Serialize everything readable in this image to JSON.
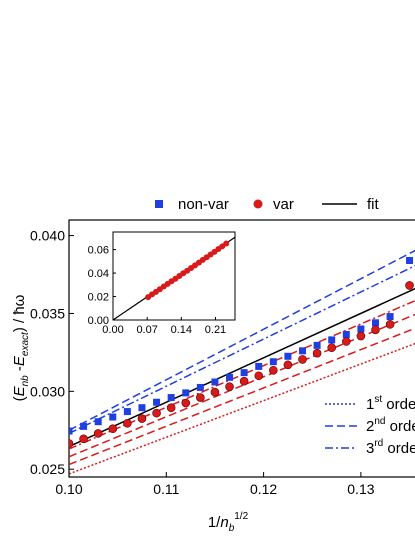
{
  "chart_data": [
    {
      "type": "scatter",
      "xlabel": "1/n_b^{1/2}",
      "ylabel": "(E_nb - E_exact) / ħω",
      "xlim": [
        0.1,
        0.137
      ],
      "ylim": [
        0.0245,
        0.041
      ],
      "x_ticks": [
        "0.10",
        "0.11",
        "0.12",
        "0.13"
      ],
      "y_ticks": [
        "0.025",
        "0.030",
        "0.035",
        "0.040"
      ],
      "legend_top": [
        {
          "label": "non-var",
          "marker": "square",
          "color": "#1f3fe0"
        },
        {
          "label": "var",
          "marker": "circle",
          "color": "#d91a1a"
        },
        {
          "label": "fit",
          "marker": "line",
          "color": "#000000"
        }
      ],
      "legend_right": [
        {
          "label_base": "1",
          "label_sup": "st",
          "label_rest": " orde",
          "dash": "dotted"
        },
        {
          "label_base": "2",
          "label_sup": "nd",
          "label_rest": " orde",
          "dash": "dashed"
        },
        {
          "label_base": "3",
          "label_sup": "rd",
          "label_rest": " orde",
          "dash": "dashdot"
        }
      ],
      "series": [
        {
          "name": "non-var",
          "color": "#1f3fe0",
          "marker": "square",
          "x": [
            0.1,
            0.1015,
            0.103,
            0.1045,
            0.106,
            0.1075,
            0.109,
            0.1105,
            0.112,
            0.1135,
            0.115,
            0.1165,
            0.118,
            0.1195,
            0.121,
            0.1225,
            0.124,
            0.1255,
            0.127,
            0.1285,
            0.13,
            0.1315,
            0.133,
            0.135
          ],
          "y": [
            0.02745,
            0.02775,
            0.02805,
            0.02835,
            0.0287,
            0.02895,
            0.0293,
            0.0296,
            0.0299,
            0.03025,
            0.0306,
            0.0309,
            0.0312,
            0.0316,
            0.0319,
            0.03225,
            0.0326,
            0.03295,
            0.0333,
            0.03365,
            0.034,
            0.0344,
            0.0348,
            0.0384
          ]
        },
        {
          "name": "var",
          "color": "#d91a1a",
          "marker": "circle",
          "x": [
            0.1,
            0.1015,
            0.103,
            0.1045,
            0.106,
            0.1075,
            0.109,
            0.1105,
            0.112,
            0.1135,
            0.115,
            0.1165,
            0.118,
            0.1195,
            0.121,
            0.1225,
            0.124,
            0.1255,
            0.127,
            0.1285,
            0.13,
            0.1315,
            0.133,
            0.135
          ],
          "y": [
            0.02665,
            0.02695,
            0.0273,
            0.0276,
            0.02795,
            0.02825,
            0.0286,
            0.02895,
            0.02925,
            0.0296,
            0.02995,
            0.0303,
            0.03065,
            0.031,
            0.03135,
            0.0317,
            0.03205,
            0.03245,
            0.0328,
            0.0332,
            0.03355,
            0.03395,
            0.0343,
            0.0368
          ]
        }
      ],
      "lines": [
        {
          "name": "fit",
          "color": "#000000",
          "dash": "solid",
          "x": [
            0.1,
            0.137
          ],
          "y": [
            0.02645,
            0.037
          ]
        },
        {
          "name": "nonvar-dashed",
          "color": "#1f3fe0",
          "dash": "dashed",
          "x": [
            0.1,
            0.137
          ],
          "y": [
            0.0275,
            0.0395
          ]
        },
        {
          "name": "nonvar-dashdot",
          "color": "#1f3fe0",
          "dash": "dashdot",
          "x": [
            0.1,
            0.137
          ],
          "y": [
            0.0273,
            0.0385
          ]
        },
        {
          "name": "var-dashdot",
          "color": "#d91a1a",
          "dash": "dashdot",
          "x": [
            0.1,
            0.137
          ],
          "y": [
            0.0263,
            0.0362
          ]
        },
        {
          "name": "var-dashed",
          "color": "#d91a1a",
          "dash": "dashed",
          "x": [
            0.1,
            0.137
          ],
          "y": [
            0.0258,
            0.0353
          ]
        },
        {
          "name": "var-dashed-2",
          "color": "#d91a1a",
          "dash": "dashed",
          "x": [
            0.1,
            0.137
          ],
          "y": [
            0.0253,
            0.0344
          ]
        },
        {
          "name": "var-dotted",
          "color": "#d91a1a",
          "dash": "dotted",
          "x": [
            0.1,
            0.137
          ],
          "y": [
            0.0247,
            0.0334
          ]
        }
      ]
    },
    {
      "type": "scatter",
      "xlim": [
        0.0,
        0.25
      ],
      "ylim": [
        0.0,
        0.075
      ],
      "x_ticks": [
        "0.00",
        "0.07",
        "0.14",
        "0.21"
      ],
      "y_ticks": [
        "0.00",
        "0.02",
        "0.04",
        "0.06"
      ],
      "series": [
        {
          "name": "var-inset",
          "color": "#d91a1a",
          "marker": "circle",
          "x": [
            0.072,
            0.08,
            0.088,
            0.096,
            0.104,
            0.112,
            0.12,
            0.128,
            0.136,
            0.144,
            0.152,
            0.16,
            0.168,
            0.176,
            0.184,
            0.192,
            0.2,
            0.208,
            0.216,
            0.224,
            0.232
          ],
          "y": [
            0.0195,
            0.0218,
            0.024,
            0.0262,
            0.0285,
            0.0308,
            0.033,
            0.0352,
            0.0375,
            0.0398,
            0.042,
            0.0443,
            0.0466,
            0.0489,
            0.0512,
            0.0535,
            0.0558,
            0.0581,
            0.0605,
            0.0628,
            0.0652
          ]
        }
      ],
      "lines": [
        {
          "name": "fit-inset",
          "color": "#000000",
          "dash": "solid",
          "x": [
            0.0,
            0.25
          ],
          "y": [
            0.0,
            0.0705
          ]
        }
      ]
    }
  ]
}
